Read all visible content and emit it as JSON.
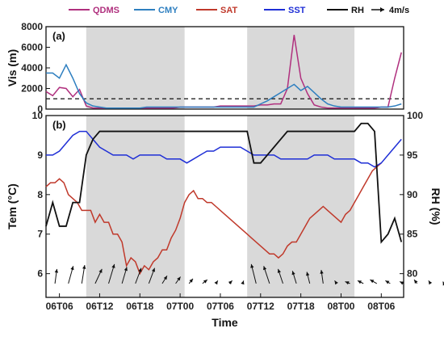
{
  "chart_data": [
    {
      "panel": "(a)",
      "type": "line",
      "ylabel": "Vis (m)",
      "ylim": [
        0,
        8000
      ],
      "yticks": [
        "0",
        "2000",
        "4000",
        "6000",
        "8000"
      ],
      "threshold": 1000,
      "x": [
        0,
        3,
        6,
        9,
        12,
        15,
        18,
        21,
        24,
        27,
        30,
        33,
        36,
        39,
        42,
        45,
        48,
        51,
        54,
        57,
        60,
        63,
        66,
        69,
        72,
        75,
        78,
        81,
        84,
        87,
        90,
        93,
        96,
        99,
        102,
        105,
        108,
        111,
        114,
        117,
        120,
        123,
        126,
        129,
        132,
        135,
        138,
        141,
        144,
        147,
        150,
        153,
        156,
        159
      ],
      "series": [
        {
          "name": "QDMS",
          "color": "#b0307e",
          "values": [
            1700,
            1300,
            2100,
            2000,
            1200,
            1900,
            300,
            100,
            100,
            100,
            100,
            100,
            100,
            100,
            100,
            100,
            100,
            100,
            100,
            100,
            200,
            200,
            200,
            200,
            200,
            200,
            300,
            300,
            300,
            300,
            300,
            300,
            400,
            400,
            500,
            500,
            2000,
            7200,
            3000,
            1500,
            400,
            200,
            100,
            100,
            100,
            100,
            100,
            100,
            100,
            100,
            200,
            200,
            3000,
            5500
          ]
        },
        {
          "name": "CMY",
          "color": "#2e7fc0",
          "values": [
            3500,
            3500,
            3000,
            4300,
            3000,
            1500,
            600,
            300,
            200,
            100,
            100,
            100,
            100,
            100,
            100,
            200,
            200,
            200,
            200,
            200,
            200,
            200,
            200,
            200,
            200,
            200,
            200,
            200,
            200,
            200,
            200,
            200,
            500,
            800,
            1200,
            1600,
            2000,
            2400,
            1800,
            2200,
            1600,
            1000,
            500,
            300,
            200,
            200,
            200,
            200,
            200,
            200,
            200,
            200,
            300,
            500
          ]
        }
      ]
    },
    {
      "panel": "(b)",
      "type": "line",
      "ylabel": "Tem (°C)",
      "y2label": "RH (%)",
      "ylim": [
        5.4,
        10.0
      ],
      "yticks": [
        "6",
        "7",
        "8",
        "9",
        "10"
      ],
      "y2lim": [
        77,
        100
      ],
      "y2ticks": [
        "80",
        "85",
        "90",
        "95",
        "100"
      ],
      "xlabel": "Time",
      "xticks": [
        "06T06",
        "06T12",
        "06T18",
        "07T00",
        "07T06",
        "07T12",
        "07T18",
        "08T00",
        "08T06"
      ],
      "shaded": [
        [
          9,
          31
        ],
        [
          45,
          69
        ]
      ],
      "series": [
        {
          "name": "SAT",
          "color": "#c0392b",
          "x": [
            0,
            1,
            2,
            3,
            4,
            5,
            6,
            7,
            8,
            9,
            10,
            11,
            12,
            13,
            14,
            15,
            16,
            17,
            18,
            19,
            20,
            21,
            22,
            23,
            24,
            25,
            26,
            27,
            28,
            29,
            30,
            31,
            32,
            33,
            34,
            35,
            36,
            37,
            38,
            39,
            40,
            41,
            42,
            43,
            44,
            45,
            46,
            47,
            48,
            49,
            50,
            51,
            52,
            53,
            54,
            55,
            56,
            57,
            58,
            59,
            60,
            61,
            62,
            63,
            64,
            65,
            66,
            67,
            68,
            69,
            70,
            71,
            72,
            73,
            74,
            75
          ],
          "values": [
            8.2,
            8.3,
            8.3,
            8.4,
            8.3,
            8.0,
            7.9,
            7.8,
            7.6,
            7.6,
            7.6,
            7.3,
            7.5,
            7.3,
            7.3,
            7.0,
            7.0,
            6.8,
            6.2,
            6.4,
            6.3,
            6.0,
            6.2,
            6.1,
            6.3,
            6.4,
            6.6,
            6.6,
            6.9,
            7.1,
            7.4,
            7.8,
            8.0,
            8.1,
            7.9,
            7.9,
            7.8,
            7.8,
            7.7,
            7.6,
            7.5,
            7.4,
            7.3,
            7.2,
            7.1,
            7.0,
            6.9,
            6.8,
            6.7,
            6.6,
            6.5,
            6.5,
            6.4,
            6.5,
            6.7,
            6.8,
            6.8,
            7.0,
            7.2,
            7.4,
            7.5,
            7.6,
            7.7,
            7.6,
            7.5,
            7.4,
            7.3,
            7.5,
            7.6,
            7.8,
            8.0,
            8.2,
            8.4,
            8.6,
            8.7,
            8.8
          ]
        },
        {
          "name": "SST",
          "color": "#1f2fd6",
          "x": [
            0,
            3,
            6,
            9,
            12,
            15,
            18,
            21,
            24,
            27,
            30,
            33,
            36,
            39,
            42,
            45,
            48,
            51,
            54,
            57,
            60,
            63,
            66,
            69,
            72,
            75,
            78,
            81,
            84,
            87,
            90,
            93,
            96,
            99,
            102,
            105,
            108,
            111,
            114,
            117,
            120,
            123,
            126,
            129,
            132,
            135,
            138,
            141,
            144,
            147,
            150,
            153,
            156,
            159
          ],
          "values": [
            9.0,
            9.0,
            9.1,
            9.3,
            9.5,
            9.6,
            9.6,
            9.4,
            9.2,
            9.1,
            9.0,
            9.0,
            9.0,
            8.9,
            9.0,
            9.0,
            9.0,
            9.0,
            8.9,
            8.9,
            8.9,
            8.8,
            8.9,
            9.0,
            9.1,
            9.1,
            9.2,
            9.2,
            9.2,
            9.2,
            9.1,
            9.0,
            9.0,
            9.0,
            9.0,
            8.9,
            8.9,
            8.9,
            8.9,
            8.9,
            9.0,
            9.0,
            9.0,
            8.9,
            8.9,
            8.9,
            8.9,
            8.8,
            8.8,
            8.7,
            8.8,
            9.0,
            9.2,
            9.4
          ]
        },
        {
          "name": "RH",
          "color": "#111111",
          "axis": "right",
          "x": [
            0,
            3,
            6,
            9,
            12,
            15,
            18,
            21,
            24,
            27,
            30,
            33,
            36,
            39,
            42,
            45,
            48,
            51,
            54,
            57,
            60,
            63,
            66,
            69,
            72,
            75,
            78,
            81,
            84,
            87,
            90,
            93,
            96,
            99,
            102,
            105,
            108,
            111,
            114,
            117,
            120,
            123,
            126,
            129,
            132,
            135,
            138,
            141,
            144,
            147,
            150,
            153,
            156,
            159
          ],
          "values": [
            86,
            89,
            86,
            86,
            89,
            89,
            95,
            97,
            98,
            98,
            98,
            98,
            98,
            98,
            98,
            98,
            98,
            98,
            98,
            98,
            98,
            98,
            98,
            98,
            98,
            98,
            98,
            98,
            98,
            98,
            98,
            94,
            94,
            95,
            96,
            97,
            98,
            98,
            98,
            98,
            98,
            98,
            98,
            98,
            98,
            98,
            98,
            99,
            99,
            98,
            84,
            85,
            87,
            84
          ]
        }
      ],
      "arrows": {
        "label": "4m/s",
        "x": [
          2,
          5,
          8,
          11,
          14,
          17,
          20,
          23,
          26,
          29,
          32,
          35,
          38,
          41,
          44,
          47,
          50,
          53,
          56,
          59,
          62,
          65,
          68,
          71,
          74,
          77,
          80,
          83,
          86,
          89
        ],
        "u": [
          0.2,
          0.5,
          0.3,
          0.7,
          0.6,
          0.5,
          0.6,
          0.6,
          0.5,
          0.5,
          0.4,
          0.5,
          0.2,
          0.3,
          0.1,
          -0.5,
          -0.6,
          -0.5,
          -0.4,
          -0.3,
          -0.2,
          -0.2,
          -0.5,
          -0.6,
          -0.7,
          -0.5,
          -0.4,
          -0.3,
          -0.2,
          -0.1
        ],
        "v": [
          1.5,
          1.8,
          1.9,
          1.5,
          2.0,
          1.7,
          1.6,
          1.6,
          0.8,
          0.7,
          0.5,
          0.4,
          0.3,
          0.3,
          0.3,
          2.0,
          1.8,
          1.5,
          1.3,
          1.2,
          1.4,
          0.3,
          0.2,
          0.3,
          0.4,
          0.3,
          0.2,
          0.4,
          0.3,
          0.2
        ]
      }
    }
  ],
  "legend": {
    "items": [
      {
        "label": "QDMS",
        "color": "#b0307e",
        "kind": "line"
      },
      {
        "label": "CMY",
        "color": "#2e7fc0",
        "kind": "line"
      },
      {
        "label": "SAT",
        "color": "#c0392b",
        "kind": "line"
      },
      {
        "label": "SST",
        "color": "#1f2fd6",
        "kind": "line"
      },
      {
        "label": "RH",
        "color": "#111111",
        "kind": "line"
      },
      {
        "label": "4m/s",
        "color": "#111111",
        "kind": "arrow"
      }
    ]
  }
}
